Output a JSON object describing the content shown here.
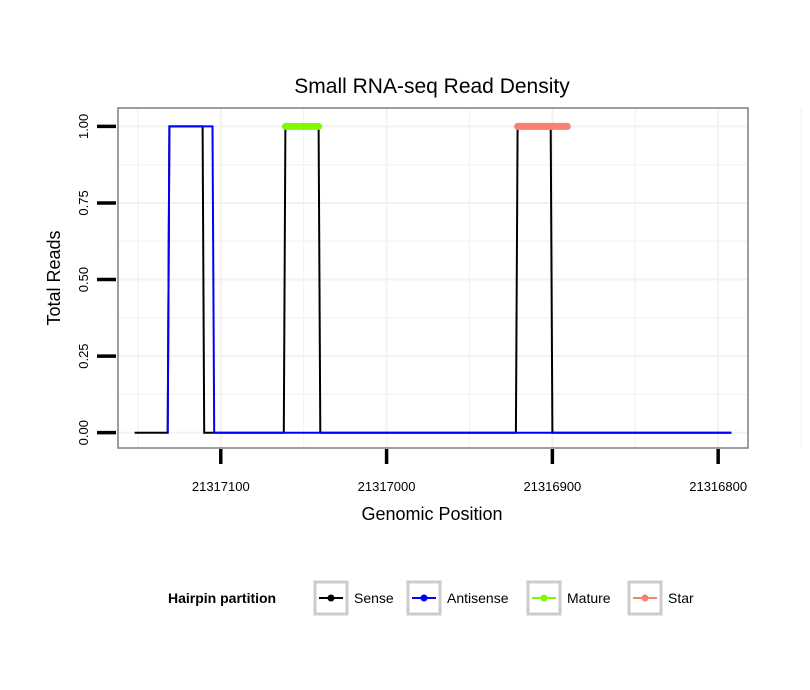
{
  "chart_data": {
    "type": "line",
    "title": "Small RNA-seq Read Density",
    "xlabel": "Genomic Position",
    "ylabel": "Total Reads",
    "x_reversed": true,
    "xlim": [
      21317162,
      21316782
    ],
    "ylim": [
      -0.05,
      1.06
    ],
    "x_ticks": [
      21317100,
      21317000,
      21316900,
      21316800
    ],
    "x_tick_labels": [
      "21317100",
      "21317000",
      "21316900",
      "21316800"
    ],
    "y_ticks": [
      0,
      0.25,
      0.5,
      0.75,
      1
    ],
    "y_tick_labels": [
      "0.00",
      "0.25",
      "0.50",
      "0.75",
      "1.00"
    ],
    "grid": true,
    "legend_placement": "bottom",
    "legend": {
      "title": "Hairpin partition",
      "entries": [
        {
          "name": "Sense",
          "color": "#000000"
        },
        {
          "name": "Antisense",
          "color": "#0000ff"
        },
        {
          "name": "Mature",
          "color": "#7cfc00"
        },
        {
          "name": "Star",
          "color": "#fa8072"
        }
      ]
    },
    "series": [
      {
        "name": "Sense",
        "color": "#000000",
        "x": [
          21317152,
          21317132,
          21317131,
          21317111,
          21317110,
          21317062,
          21317061,
          21317041,
          21317040,
          21316922,
          21316921,
          21316901,
          21316900,
          21316792
        ],
        "y": [
          0,
          0,
          1,
          1,
          0,
          0,
          1,
          1,
          0,
          0,
          1,
          1,
          0,
          0
        ]
      },
      {
        "name": "Antisense",
        "color": "#0000ff",
        "x": [
          21317132,
          21317131,
          21317105,
          21317104,
          21316792
        ],
        "y": [
          0,
          1,
          1,
          0,
          0
        ]
      },
      {
        "name": "Mature",
        "color": "#7cfc00",
        "x": [
          21317061,
          21317041
        ],
        "y": [
          1,
          1
        ]
      },
      {
        "name": "Star",
        "color": "#fa8072",
        "x": [
          21316921,
          21316891
        ],
        "y": [
          1,
          1
        ]
      }
    ]
  }
}
